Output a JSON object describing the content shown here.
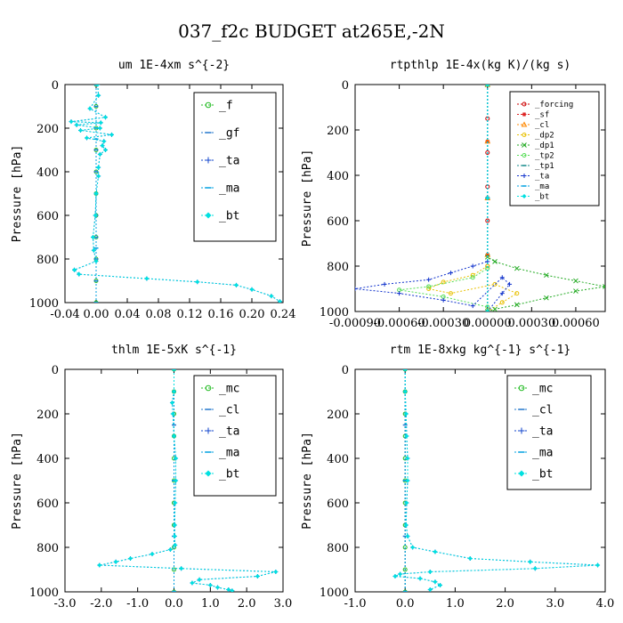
{
  "figure_title": "037_f2c  BUDGET at265E,-2N",
  "chart_data": [
    {
      "type": "line",
      "title": "um  1E-4xm s^{-2}",
      "xlabel": "",
      "ylabel": "Pressure [hPa]",
      "xlim": [
        -0.04,
        0.24
      ],
      "ylim": [
        1000,
        0
      ],
      "xticks": [
        "-0.04",
        "0.00",
        "0.04",
        "0.08",
        "0.12",
        "0.16",
        "0.20",
        "0.24"
      ],
      "yticks": [
        "0",
        "200",
        "400",
        "600",
        "800",
        "1000"
      ],
      "legend_position": "top-right",
      "series": [
        {
          "name": "_f",
          "color": "#22bb22",
          "marker": "circle",
          "x": [
            0.0,
            0.0,
            0.0,
            0.0,
            0.0,
            0.0,
            0.0,
            0.0,
            0.0,
            0.0,
            0.0
          ],
          "y": [
            0,
            100,
            200,
            300,
            400,
            500,
            600,
            700,
            800,
            900,
            1000
          ]
        },
        {
          "name": "_gf",
          "color": "#2277cc",
          "marker": "dash",
          "x": [
            0.0,
            0.0,
            0.0,
            0.0,
            0.0,
            0.0,
            0.0,
            0.0,
            0.0,
            0.0,
            0.0
          ],
          "y": [
            0,
            100,
            200,
            300,
            400,
            500,
            600,
            700,
            800,
            900,
            1000
          ]
        },
        {
          "name": "_ta",
          "color": "#1144cc",
          "marker": "plus",
          "x": [
            0.002,
            0.003,
            -0.008,
            0.012,
            -0.032,
            0.006,
            -0.025,
            0.005,
            -0.02,
            0.02,
            -0.012,
            0.01,
            0.008,
            0.012,
            0.005,
            0.003,
            0.003,
            0.0,
            -0.001,
            -0.004,
            -0.003,
            0.0,
            -0.028,
            -0.022,
            0.065,
            0.13,
            0.18,
            0.2,
            0.225,
            0.236
          ],
          "y": [
            0,
            50,
            110,
            150,
            170,
            175,
            185,
            200,
            210,
            230,
            245,
            260,
            280,
            300,
            320,
            380,
            420,
            500,
            600,
            700,
            760,
            810,
            850,
            870,
            890,
            905,
            920,
            940,
            970,
            995
          ]
        },
        {
          "name": "_ma",
          "color": "#00a0e0",
          "marker": "dash",
          "x": [
            0.0,
            0.0,
            0.0,
            0.0,
            0.0
          ],
          "y": [
            0,
            250,
            500,
            750,
            1000
          ]
        },
        {
          "name": "_bt",
          "color": "#00e0e0",
          "marker": "diamond",
          "x": [
            0.002,
            0.003,
            -0.008,
            0.012,
            -0.032,
            0.006,
            -0.025,
            0.005,
            -0.02,
            0.02,
            -0.012,
            0.01,
            0.008,
            0.012,
            0.005,
            0.003,
            0.003,
            0.0,
            -0.001,
            -0.004,
            -0.003,
            0.0,
            -0.028,
            -0.022,
            0.065,
            0.13,
            0.18,
            0.2,
            0.225,
            0.236
          ],
          "y": [
            0,
            50,
            110,
            150,
            170,
            175,
            185,
            200,
            210,
            230,
            245,
            260,
            280,
            300,
            320,
            380,
            420,
            500,
            600,
            700,
            760,
            810,
            850,
            870,
            890,
            905,
            920,
            940,
            970,
            995
          ]
        }
      ]
    },
    {
      "type": "line",
      "title": "rtpthlp  1E-4x(kg K)/(kg s)",
      "xlabel": "",
      "ylabel": "Pressure [hPa]",
      "xlim": [
        -0.0009,
        0.0008
      ],
      "ylim": [
        1000,
        0
      ],
      "xticks": [
        "-0.00090",
        "-0.00060",
        "-0.00030",
        "0.00000",
        "0.00030",
        "0.00060"
      ],
      "yticks": [
        "0",
        "200",
        "400",
        "600",
        "800",
        "1000"
      ],
      "legend_position": "top-right",
      "series": [
        {
          "name": "_forcing",
          "color": "#cc0000",
          "marker": "circle",
          "x": [
            0.0,
            0.0,
            0.0,
            0.0,
            0.0,
            0.0,
            0.0
          ],
          "y": [
            0,
            150,
            300,
            450,
            600,
            800,
            1000
          ]
        },
        {
          "name": "_sf",
          "color": "#dd2222",
          "marker": "star",
          "x": [
            0.0,
            0.0,
            0.0,
            0.0,
            0.0
          ],
          "y": [
            0,
            250,
            500,
            750,
            1000
          ]
        },
        {
          "name": "_cl",
          "color": "#ff8800",
          "marker": "triangle",
          "x": [
            0.0,
            0.0,
            0.0,
            0.0,
            0.0
          ],
          "y": [
            0,
            250,
            500,
            750,
            1000
          ]
        },
        {
          "name": "_dp2",
          "color": "#e8c000",
          "marker": "circle",
          "x": [
            0.0,
            0.0,
            -0.0001,
            -0.0003,
            -0.0004,
            -0.00025,
            5e-05,
            0.0002,
            0.0001,
            0.0
          ],
          "y": [
            0,
            800,
            840,
            870,
            900,
            920,
            880,
            920,
            960,
            1000
          ]
        },
        {
          "name": "_dp1",
          "color": "#22aa22",
          "marker": "cross",
          "x": [
            0.0,
            0.0,
            5e-05,
            0.0002,
            0.0004,
            0.0006,
            0.0008,
            0.0006,
            0.0004,
            0.0002,
            5e-05,
            0.0
          ],
          "y": [
            0,
            760,
            780,
            810,
            840,
            865,
            890,
            910,
            940,
            970,
            990,
            1000
          ]
        },
        {
          "name": "_tp2",
          "color": "#55dd55",
          "marker": "circle",
          "x": [
            0.0,
            0.0,
            -0.0001,
            -0.0004,
            -0.0006,
            -0.0003,
            0.0
          ],
          "y": [
            0,
            810,
            850,
            890,
            905,
            935,
            980
          ]
        },
        {
          "name": "_tp1",
          "color": "#118888",
          "marker": "dash",
          "x": [
            0.0,
            0.0,
            0.0
          ],
          "y": [
            0,
            500,
            1000
          ]
        },
        {
          "name": "_ta",
          "color": "#1133cc",
          "marker": "plus",
          "x": [
            0.0,
            0.0,
            -0.0001,
            -0.00025,
            -0.0004,
            -0.0007,
            -0.0009,
            -0.0006,
            -0.0003,
            -0.0001,
            0.0001,
            0.00015,
            0.0001,
            0.0
          ],
          "y": [
            0,
            780,
            800,
            830,
            860,
            880,
            900,
            920,
            950,
            975,
            850,
            880,
            920,
            1000
          ]
        },
        {
          "name": "_ma",
          "color": "#00a0e0",
          "marker": "dash",
          "x": [
            0.0,
            0.0,
            0.0
          ],
          "y": [
            0,
            500,
            1000
          ]
        },
        {
          "name": "_bt",
          "color": "#00e0e0",
          "marker": "diamond",
          "x": [
            0.0,
            0.0,
            0.0
          ],
          "y": [
            0,
            500,
            1000
          ]
        }
      ]
    },
    {
      "type": "line",
      "title": "thlm  1E-5xK s^{-1}",
      "xlabel": "",
      "ylabel": "Pressure [hPa]",
      "xlim": [
        -3.0,
        3.0
      ],
      "ylim": [
        1000,
        0
      ],
      "xticks": [
        "-3.0",
        "-2.0",
        "-1.0",
        "0.0",
        "1.0",
        "2.0",
        "3.0"
      ],
      "yticks": [
        "0",
        "200",
        "400",
        "600",
        "800",
        "1000"
      ],
      "legend_position": "top-right",
      "series": [
        {
          "name": "_mc",
          "color": "#22bb22",
          "marker": "circle",
          "x": [
            0.0,
            0.0,
            0.0,
            0.0,
            0.0,
            0.0,
            0.0,
            0.0,
            0.0,
            0.0,
            0.0
          ],
          "y": [
            0,
            100,
            200,
            300,
            400,
            500,
            600,
            700,
            800,
            900,
            1000
          ]
        },
        {
          "name": "_cl",
          "color": "#2277cc",
          "marker": "dash",
          "x": [
            0.0,
            0.0,
            0.0,
            0.0,
            0.0
          ],
          "y": [
            0,
            250,
            500,
            750,
            1000
          ]
        },
        {
          "name": "_ta",
          "color": "#1144cc",
          "marker": "plus",
          "x": [
            0.0,
            0.0,
            -0.05,
            -0.03,
            0.0,
            0.05,
            0.05,
            0.03,
            0.02,
            0.02,
            0.03,
            -0.1,
            -0.6,
            -1.2,
            -1.6,
            -2.05,
            0.2,
            2.8,
            2.3,
            0.7,
            0.5,
            1.0,
            1.2,
            1.5,
            1.6
          ],
          "y": [
            0,
            100,
            150,
            200,
            300,
            400,
            500,
            600,
            700,
            750,
            790,
            810,
            830,
            850,
            865,
            880,
            895,
            910,
            930,
            945,
            960,
            970,
            980,
            990,
            995
          ]
        },
        {
          "name": "_ma",
          "color": "#00a0e0",
          "marker": "dash",
          "x": [
            0.0,
            0.0,
            0.0
          ],
          "y": [
            0,
            500,
            1000
          ]
        },
        {
          "name": "_bt",
          "color": "#00e0e0",
          "marker": "diamond",
          "x": [
            0.0,
            0.0,
            -0.05,
            -0.03,
            0.0,
            0.05,
            0.05,
            0.03,
            0.02,
            0.02,
            0.03,
            -0.1,
            -0.6,
            -1.2,
            -1.6,
            -2.05,
            0.2,
            2.8,
            2.3,
            0.7,
            0.5,
            1.0,
            1.2,
            1.5,
            1.6
          ],
          "y": [
            0,
            100,
            150,
            200,
            300,
            400,
            500,
            600,
            700,
            750,
            790,
            810,
            830,
            850,
            865,
            880,
            895,
            910,
            930,
            945,
            960,
            970,
            980,
            990,
            995
          ]
        }
      ]
    },
    {
      "type": "line",
      "title": "rtm  1E-8xkg kg^{-1} s^{-1}",
      "xlabel": "",
      "ylabel": "Pressure [hPa]",
      "xlim": [
        -1.0,
        4.0
      ],
      "ylim": [
        1000,
        0
      ],
      "xticks": [
        "-1.0",
        "0.0",
        "1.0",
        "2.0",
        "3.0",
        "4.0"
      ],
      "yticks": [
        "0",
        "200",
        "400",
        "600",
        "800",
        "1000"
      ],
      "legend_position": "top-right",
      "series": [
        {
          "name": "_mc",
          "color": "#22bb22",
          "marker": "circle",
          "x": [
            0.0,
            0.0,
            0.0,
            0.0,
            0.0,
            0.0,
            0.0,
            0.0,
            0.0,
            0.0,
            0.0
          ],
          "y": [
            0,
            100,
            200,
            300,
            400,
            500,
            600,
            700,
            800,
            900,
            1000
          ]
        },
        {
          "name": "_cl",
          "color": "#2277cc",
          "marker": "dash",
          "x": [
            0.0,
            0.0,
            0.0,
            0.0,
            0.0
          ],
          "y": [
            0,
            250,
            500,
            750,
            1000
          ]
        },
        {
          "name": "_ta",
          "color": "#1144cc",
          "marker": "plus",
          "x": [
            0.0,
            0.0,
            0.02,
            0.03,
            0.05,
            0.05,
            0.03,
            0.02,
            0.05,
            0.15,
            0.6,
            1.3,
            2.5,
            3.85,
            2.6,
            0.5,
            -0.1,
            -0.2,
            0.3,
            0.6,
            0.7,
            0.5
          ],
          "y": [
            0,
            100,
            200,
            300,
            400,
            500,
            600,
            700,
            750,
            800,
            820,
            850,
            865,
            880,
            895,
            910,
            920,
            930,
            940,
            955,
            970,
            990
          ]
        },
        {
          "name": "_ma",
          "color": "#00a0e0",
          "marker": "dash",
          "x": [
            0.0,
            0.0,
            0.0
          ],
          "y": [
            0,
            500,
            1000
          ]
        },
        {
          "name": "_bt",
          "color": "#00e0e0",
          "marker": "diamond",
          "x": [
            0.0,
            0.0,
            0.02,
            0.03,
            0.05,
            0.05,
            0.03,
            0.02,
            0.05,
            0.15,
            0.6,
            1.3,
            2.5,
            3.85,
            2.6,
            0.5,
            -0.1,
            -0.2,
            0.3,
            0.6,
            0.7,
            0.5
          ],
          "y": [
            0,
            100,
            200,
            300,
            400,
            500,
            600,
            700,
            750,
            800,
            820,
            850,
            865,
            880,
            895,
            910,
            920,
            930,
            940,
            955,
            970,
            990
          ]
        }
      ]
    }
  ]
}
